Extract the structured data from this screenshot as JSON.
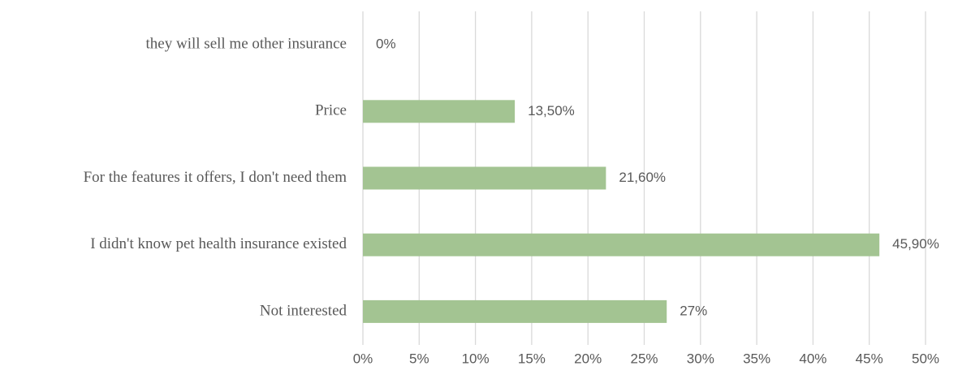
{
  "chart_data": {
    "type": "bar",
    "orientation": "horizontal",
    "categories": [
      "they will sell me other insurance",
      "Price",
      "For the features it offers, I don't need them",
      "I didn't know pet health insurance existed",
      "Not interested"
    ],
    "values": [
      0,
      13.5,
      21.6,
      45.9,
      27
    ],
    "value_labels": [
      "0%",
      "13,50%",
      "21,60%",
      "45,90%",
      "27%"
    ],
    "color": "#a3c492",
    "xlim": [
      0,
      50
    ],
    "xticks": [
      {
        "value": 0,
        "label": "0%"
      },
      {
        "value": 5,
        "label": "5%"
      },
      {
        "value": 10,
        "label": "10%"
      },
      {
        "value": 15,
        "label": "15%"
      },
      {
        "value": 20,
        "label": "20%"
      },
      {
        "value": 25,
        "label": "25%"
      },
      {
        "value": 30,
        "label": "30%"
      },
      {
        "value": 35,
        "label": "35%"
      },
      {
        "value": 40,
        "label": "40%"
      },
      {
        "value": 45,
        "label": "45%"
      },
      {
        "value": 50,
        "label": "50%"
      }
    ],
    "grid": true
  }
}
